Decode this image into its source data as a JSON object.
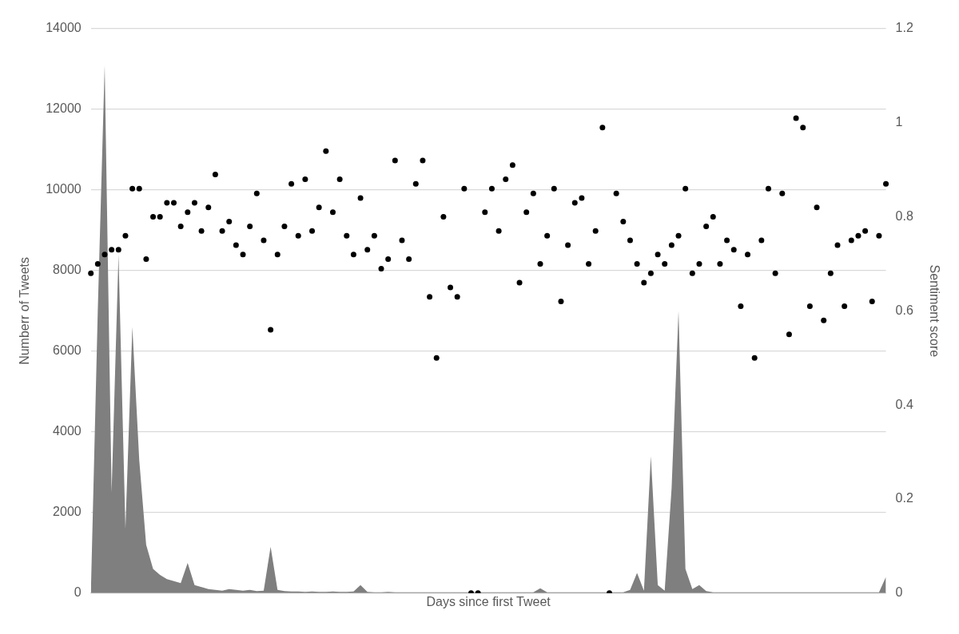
{
  "chart_data": {
    "type": "area",
    "xlabel": "Days since first Tweet",
    "ylabel": "Numberr of Tweets",
    "y2label": "Sentiment score",
    "categories": [
      null,
      null,
      null,
      null,
      null,
      null,
      null,
      null,
      null,
      null,
      null,
      null,
      null,
      null,
      null,
      null,
      null,
      null,
      null,
      null,
      null,
      null,
      null,
      null,
      null,
      null,
      null,
      null,
      null,
      null,
      null,
      null,
      null,
      null,
      null,
      null,
      null,
      null,
      null,
      null,
      null,
      null,
      null,
      null,
      null,
      null,
      null,
      null,
      null,
      null,
      null,
      null,
      null,
      null,
      null,
      null,
      null,
      null,
      null,
      null,
      null,
      null,
      null,
      null,
      null,
      null,
      null,
      null,
      null,
      null,
      null,
      null,
      null,
      null,
      null,
      null,
      null,
      null,
      null,
      null,
      null,
      null,
      null,
      null,
      null,
      null,
      null,
      null,
      null,
      null,
      null,
      null,
      null,
      null,
      null,
      null,
      null,
      null,
      null,
      null,
      null,
      null,
      null,
      null,
      null,
      null,
      null,
      null,
      null,
      null,
      null,
      null,
      null,
      null,
      null,
      null
    ],
    "series": [
      {
        "color": "#7f7f7f",
        "values": [
          0,
          7000,
          13100,
          2500,
          8400,
          1600,
          6600,
          3300,
          1200,
          600,
          450,
          350,
          300,
          250,
          750,
          200,
          150,
          100,
          80,
          60,
          100,
          80,
          60,
          80,
          50,
          60,
          1150,
          80,
          50,
          40,
          40,
          30,
          40,
          30,
          30,
          40,
          30,
          30,
          40,
          200,
          30,
          20,
          20,
          30,
          20,
          20,
          20,
          20,
          20,
          20,
          20,
          20,
          20,
          20,
          20,
          20,
          20,
          20,
          20,
          20,
          20,
          20,
          20,
          20,
          20,
          120,
          20,
          20,
          20,
          20,
          20,
          20,
          20,
          20,
          20,
          20,
          20,
          20,
          80,
          500,
          60,
          3400,
          200,
          60,
          2600,
          7000,
          600,
          100,
          200,
          50,
          20,
          20,
          20,
          20,
          20,
          20,
          20,
          20,
          20,
          20,
          20,
          20,
          20,
          20,
          20,
          20,
          20,
          20,
          20,
          20,
          20,
          20,
          20,
          20,
          20,
          400
        ]
      },
      {
        "type": "scatter",
        "axis": "y2",
        "marker": "circle",
        "color": "#000000",
        "values": [
          0.68,
          0.7,
          0.72,
          0.73,
          0.73,
          0.76,
          0.86,
          0.86,
          0.71,
          0.8,
          0.8,
          0.83,
          0.83,
          0.78,
          0.81,
          0.83,
          0.77,
          0.82,
          0.89,
          0.77,
          0.79,
          0.74,
          0.72,
          0.78,
          0.85,
          0.75,
          0.56,
          0.72,
          0.78,
          0.87,
          0.76,
          0.88,
          0.77,
          0.82,
          0.94,
          0.81,
          0.88,
          0.76,
          0.72,
          0.84,
          0.73,
          0.76,
          0.69,
          0.71,
          0.92,
          0.75,
          0.71,
          0.87,
          0.92,
          0.63,
          0.5,
          0.8,
          0.65,
          0.63,
          0.86,
          0,
          0,
          0.81,
          0.86,
          0.77,
          0.88,
          0.91,
          0.66,
          0.81,
          0.85,
          0.7,
          0.76,
          0.86,
          0.62,
          0.74,
          0.83,
          0.84,
          0.7,
          0.77,
          0.99,
          0,
          0.85,
          0.79,
          0.75,
          0.7,
          0.66,
          0.68,
          0.72,
          0.7,
          0.74,
          0.76,
          0.86,
          0.68,
          0.7,
          0.78,
          0.8,
          0.7,
          0.75,
          0.73,
          0.61,
          0.72,
          0.5,
          0.75,
          0.86,
          0.68,
          0.85,
          0.55,
          1.01,
          0.99,
          0.61,
          0.82,
          0.58,
          0.68,
          0.74,
          0.61,
          0.75,
          0.76,
          0.77,
          0.62,
          0.76,
          0.87
        ]
      }
    ],
    "ylim": [
      0,
      14000
    ],
    "yticks": [
      0,
      2000,
      4000,
      6000,
      8000,
      10000,
      12000,
      14000
    ],
    "y2lim": [
      0,
      1.2
    ],
    "y2ticks": [
      0,
      0.2,
      0.4,
      0.6,
      0.8,
      1,
      1.2
    ],
    "grid": "y",
    "legend": false
  }
}
